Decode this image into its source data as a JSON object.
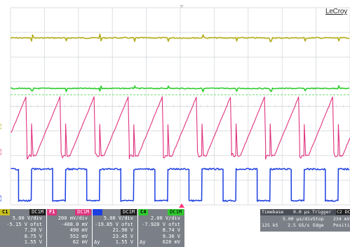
{
  "brand": "LeCroy",
  "colors": {
    "c1": "#b3ac1a",
    "c2": "#e0337f",
    "c3": "#1c3fe0",
    "c4": "#2ecc2e",
    "grid": "#cfd3d8"
  },
  "channel_markers": {
    "c1": "C1",
    "c2": "C2",
    "c3": "C3"
  },
  "channels": [
    {
      "tag": "C1",
      "coupling": "DC1M",
      "color": "#c8c020",
      "vdiv": "5.00 V/div",
      "offset": "-5.15 V ofst",
      "m1": "7.20 V",
      "m2": "8.75 V",
      "m3": "1.55 V"
    },
    {
      "tag": "F1",
      "coupling": "DC1M",
      "color": "#e0337f",
      "vdiv": "200 mV/div",
      "offset": "-408.0 mV",
      "m1": "490 mV",
      "m2": "552 mV",
      "m3": "62 mV"
    },
    {
      "tag": "C3",
      "coupling": "DC1M",
      "color": "#1c3fe0",
      "vdiv": "5.00 V/div",
      "offset": "-19.85 V ofst",
      "m1": "21.90 V",
      "m2": "23.45 V",
      "m3": "1.55 V"
    },
    {
      "tag": "C4",
      "coupling": "DC1M",
      "color": "#2ecc2e",
      "vdiv": "2.00 V/div",
      "offset": "-7.920 V ofst",
      "m1": "8.74 V",
      "m2": "9.36 V",
      "m3": "620 mV"
    }
  ],
  "delta_label": "Δy",
  "timebase": {
    "label": "Timebase",
    "value": "0.0 µs",
    "div": "5.00 µs/div",
    "samples": "125 kS",
    "rate": "2.5 GS/s"
  },
  "trigger": {
    "label": "Trigger",
    "coupling_tag": "C2 DC",
    "mode": "Stop",
    "level": "234 mV",
    "type": "Edge",
    "slope": "Positive"
  }
}
